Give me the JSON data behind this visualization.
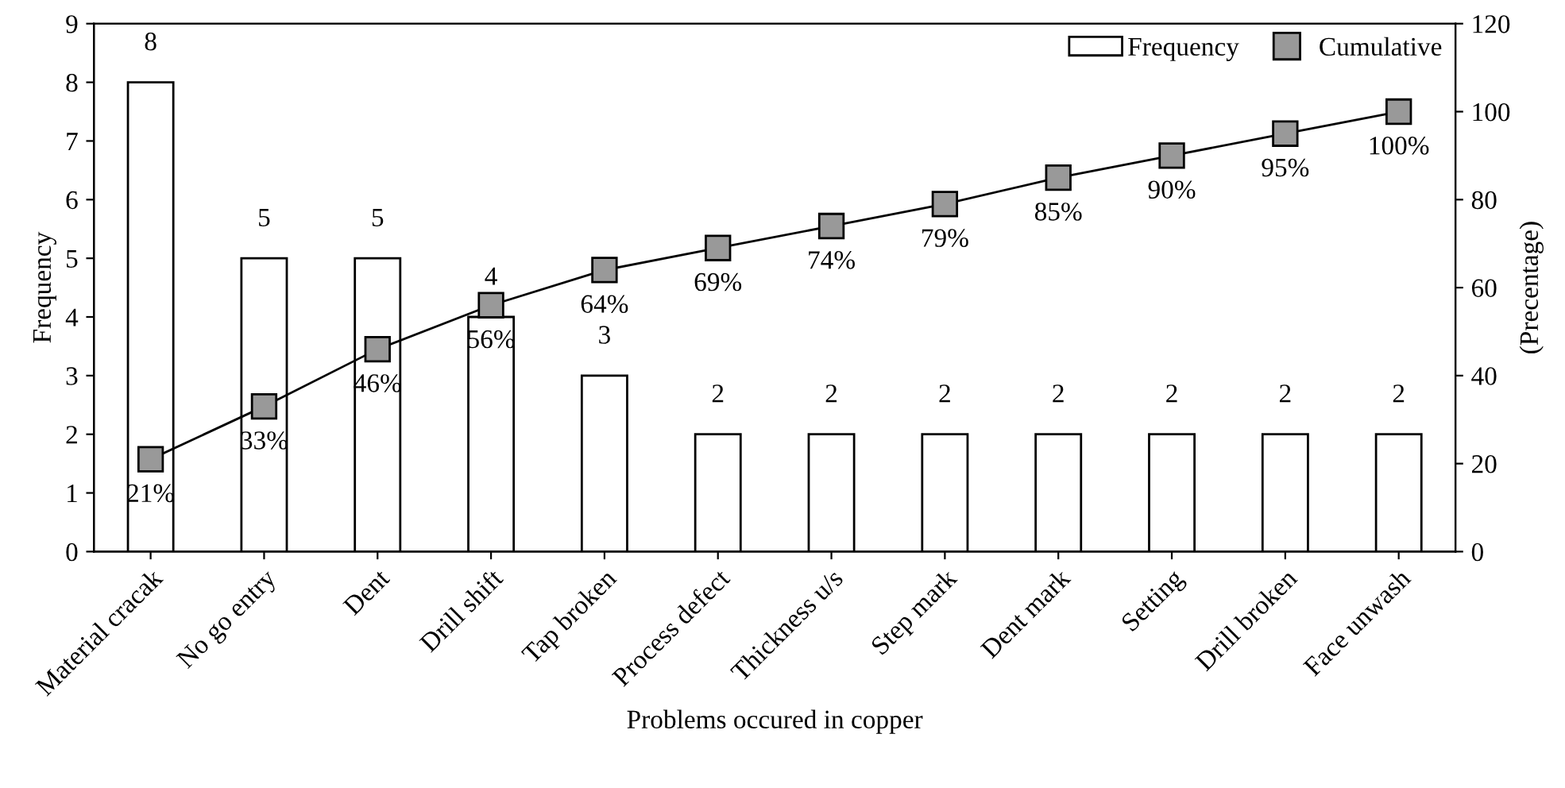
{
  "chart_data": {
    "type": "bar",
    "xlabel": "Problems occured in copper",
    "ylabel": "Frequency",
    "y2label": "(Precentage)",
    "categories": [
      "Material cracak",
      "No go entry",
      "Dent",
      "Drill shift",
      "Tap broken",
      "Process defect",
      "Thickness u/s",
      "Step mark",
      "Dent mark",
      "Setting",
      "Drill broken",
      "Face unwash"
    ],
    "series": [
      {
        "name": "Frequency",
        "type": "bar",
        "color": "#ffffff",
        "values": [
          8,
          5,
          5,
          4,
          3,
          2,
          2,
          2,
          2,
          2,
          2,
          2
        ],
        "data_labels": true
      },
      {
        "name": "Cumulative",
        "type": "line",
        "axis": "y2",
        "color": "#999999",
        "marker": "square",
        "values": [
          21,
          33,
          46,
          56,
          64,
          69,
          74,
          79,
          85,
          90,
          95,
          100
        ],
        "value_labels": [
          "21%",
          "33%",
          "46%",
          "56%",
          "64%",
          "69%",
          "74%",
          "79%",
          "85%",
          "90%",
          "95%",
          "100%"
        ]
      }
    ],
    "ylim": [
      0,
      9
    ],
    "yticks": [
      0,
      1,
      2,
      3,
      4,
      5,
      6,
      7,
      8,
      9
    ],
    "y2lim": [
      0,
      120
    ],
    "y2ticks": [
      0,
      20,
      40,
      60,
      80,
      100,
      120
    ],
    "grid": false,
    "legend": "top right"
  }
}
